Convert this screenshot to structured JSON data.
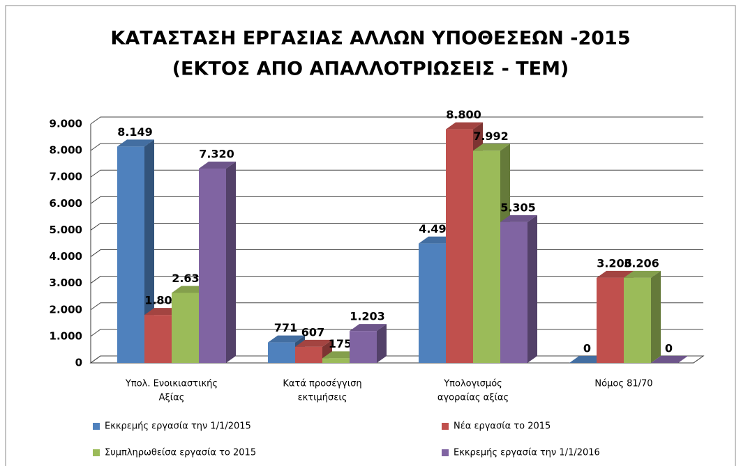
{
  "chart_data": {
    "type": "bar",
    "title": [
      "ΚΑΤΑΣΤΑΣΗ  ΕΡΓΑΣΙΑΣ  ΑΛΛΩΝ ΥΠΟΘΕΣΕΩΝ -2015",
      "(ΕΚΤΟΣ  ΑΠΟ  ΑΠΑΛΛΟΤΡΙΩΣΕΙΣ - ΤΕΜ)"
    ],
    "categories": [
      [
        "Υπολ. Ενοικιαστικής",
        "Αξίας"
      ],
      [
        "Κατά προσέγγιση",
        "εκτιμήσεις"
      ],
      [
        "Υπολογισμός",
        "αγοραίας αξίας"
      ],
      [
        "Νόμος 81/70"
      ]
    ],
    "series": [
      {
        "name": "Εκκρεμής  εργασία την 1/1/2015",
        "color": "#4f81bd",
        "values": [
          8149,
          771,
          4497,
          0
        ],
        "value_labels": [
          "8.149",
          "771",
          "4.497",
          "0"
        ]
      },
      {
        "name": "Νέα εργασία το 2015",
        "color": "#c0504d",
        "values": [
          1808,
          607,
          8800,
          3206
        ],
        "value_labels": [
          "1.808",
          "607",
          "8.800",
          "3.206"
        ]
      },
      {
        "name": "Συμπληρωθείσα  εργασία το 2015",
        "color": "#9bbb59",
        "values": [
          2637,
          175,
          7992,
          3206
        ],
        "value_labels": [
          "2.637",
          "175",
          "7.992",
          "3.206"
        ]
      },
      {
        "name": "Εκκρεμής  εργασία την 1/1/2016",
        "color": "#8064a2",
        "values": [
          7320,
          1203,
          5305,
          0
        ],
        "value_labels": [
          "7.320",
          "1.203",
          "5.305",
          "0"
        ]
      }
    ],
    "ylim": [
      0,
      9000
    ],
    "yticks": [
      0,
      {
        "value": 1000,
        "label": "1.000"
      },
      {
        "value": 2000,
        "label": "2.000"
      },
      {
        "value": 3000,
        "label": "3.000"
      },
      {
        "value": 4000,
        "label": "4.000"
      },
      {
        "value": 5000,
        "label": "5.000"
      },
      {
        "value": 6000,
        "label": "6.000"
      },
      {
        "value": 7000,
        "label": "7.000"
      },
      {
        "value": 8000,
        "label": "8.000"
      },
      {
        "value": 9000,
        "label": "9.000"
      }
    ],
    "grid": true,
    "legend": "bottom"
  }
}
